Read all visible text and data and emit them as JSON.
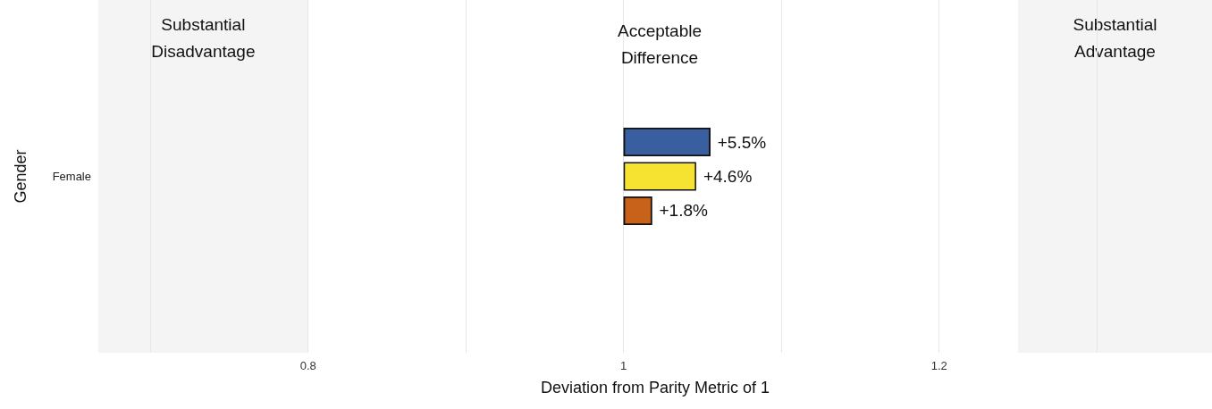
{
  "chart_data": {
    "type": "bar",
    "orientation": "horizontal",
    "xlabel": "Deviation from Parity Metric of 1",
    "ylabel": "Gender",
    "categories": [
      "Female"
    ],
    "series": [
      {
        "color": "#3a5fa0",
        "base": [
          1
        ],
        "values": [
          0.055
        ],
        "value_labels": [
          "+5.5%"
        ]
      },
      {
        "color": "#f5e231",
        "base": [
          1
        ],
        "values": [
          0.046
        ],
        "value_labels": [
          "+4.6%"
        ]
      },
      {
        "color": "#c8621a",
        "base": [
          1
        ],
        "values": [
          0.018
        ],
        "value_labels": [
          "+1.8%"
        ]
      }
    ],
    "xlim": [
      0.667,
      1.373
    ],
    "xticks": [
      {
        "value": 0.7,
        "label": null
      },
      0.8,
      {
        "value": 0.9,
        "label": null
      },
      1,
      {
        "value": 1.1,
        "label": null
      },
      1.2,
      {
        "value": 1.3,
        "label": null
      }
    ],
    "bands": [
      {
        "axis": "x",
        "from": 0.667,
        "to": 0.8,
        "label": "Substantial\nDisadvantage",
        "color": "#f4f4f4"
      },
      {
        "axis": "x",
        "from": 1.25,
        "to": 1.373,
        "label": "Substantial\nAdvantage",
        "color": "#f4f4f4"
      }
    ],
    "annotations": [
      "Acceptable\nDifference"
    ],
    "grid": "x"
  }
}
